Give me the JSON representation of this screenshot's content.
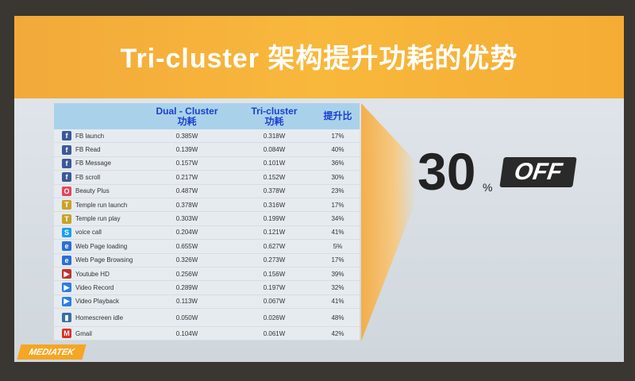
{
  "title": "Tri-cluster 架构提升功耗的优势",
  "table": {
    "headers": [
      "",
      "Dual  - Cluster\n功耗",
      "Tri-cluster\n功耗",
      "提升比"
    ],
    "rows": [
      {
        "icon": "facebook-icon",
        "color": "#3b5998",
        "name": "FB launch",
        "dual": "0.385W",
        "tri": "0.318W",
        "gain": "17%"
      },
      {
        "icon": "facebook-icon",
        "color": "#3b5998",
        "name": "FB Read",
        "dual": "0.139W",
        "tri": "0.084W",
        "gain": "40%"
      },
      {
        "icon": "facebook-icon",
        "color": "#3b5998",
        "name": "FB Message",
        "dual": "0.157W",
        "tri": "0.101W",
        "gain": "36%"
      },
      {
        "icon": "facebook-icon",
        "color": "#3b5998",
        "name": "FB scroll",
        "dual": "0.217W",
        "tri": "0.152W",
        "gain": "30%"
      },
      {
        "icon": "beautyplus-icon",
        "color": "#e2465c",
        "name": "Beauty Plus",
        "dual": "0.487W",
        "tri": "0.378W",
        "gain": "23%"
      },
      {
        "icon": "temple-run-icon",
        "color": "#c9a227",
        "name": "Temple run launch",
        "dual": "0.378W",
        "tri": "0.316W",
        "gain": "17%"
      },
      {
        "icon": "temple-run-icon",
        "color": "#c9a227",
        "name": "Temple run play",
        "dual": "0.303W",
        "tri": "0.199W",
        "gain": "34%"
      },
      {
        "icon": "skype-icon",
        "color": "#1aa0e8",
        "name": "voice call",
        "dual": "0.204W",
        "tri": "0.121W",
        "gain": "41%"
      },
      {
        "icon": "globe-icon",
        "color": "#2a6fd6",
        "name": "Web Page loading",
        "dual": "0.655W",
        "tri": "0.627W",
        "gain": "5%"
      },
      {
        "icon": "globe-icon",
        "color": "#2a6fd6",
        "name": "Web Page Browsing",
        "dual": "0.326W",
        "tri": "0.273W",
        "gain": "17%"
      },
      {
        "icon": "youtube-icon",
        "color": "#c4302b",
        "name": "Youtube HD",
        "dual": "0.256W",
        "tri": "0.156W",
        "gain": "39%"
      },
      {
        "icon": "video-icon",
        "color": "#2a7fe0",
        "name": "Video Record",
        "dual": "0.289W",
        "tri": "0.197W",
        "gain": "32%"
      },
      {
        "icon": "video-icon",
        "color": "#2a7fe0",
        "name": "Video Playback",
        "dual": "0.113W",
        "tri": "0.067W",
        "gain": "41%"
      },
      {
        "icon": "homescreen-icon",
        "color": "#3a6ea5",
        "name": "Homescreen idle",
        "dual": "0.050W",
        "tri": "0.026W",
        "gain": "48%"
      },
      {
        "icon": "gmail-icon",
        "color": "#d93025",
        "name": "Gmail",
        "dual": "0.104W",
        "tri": "0.061W",
        "gain": "42%"
      }
    ]
  },
  "promo": {
    "number": "30",
    "percent": "%",
    "off": "OFF"
  },
  "logo": "MEDIATEK",
  "colors": {
    "header": "#f5ac35",
    "table_header": "#a9d2ea",
    "header_text": "#1a3fd0"
  }
}
